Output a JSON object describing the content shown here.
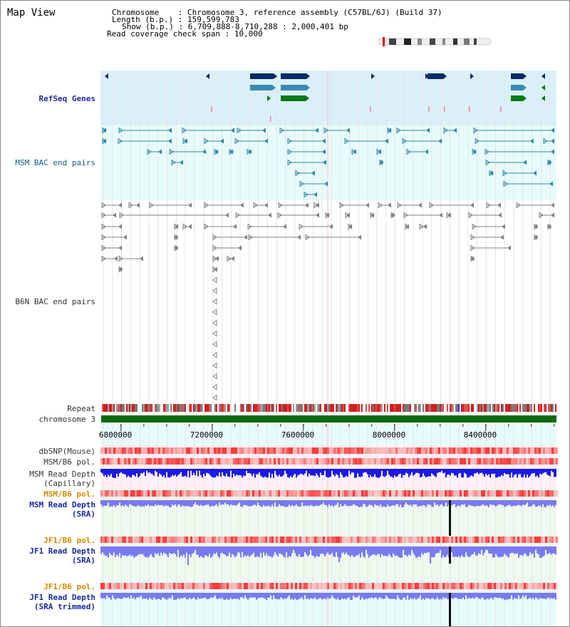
{
  "title": "Map View",
  "info": {
    "chromosome_label": "Chromosome",
    "chromosome_value": "Chromosome 3, reference assembly (C57BL/6J) (Build 37)",
    "length_label": "Length (b.p.)",
    "length_value": "159,599,783",
    "show_label": "Show (b.p.)",
    "show_value": "6,709,888-8,710,288 : 2,000,401 bp",
    "span_label": "Read coverage check span",
    "span_value": "10,000"
  },
  "tracks": {
    "refseq": "RefSeq Genes",
    "msm_bac": "MSM BAC end pairs",
    "b6n_bac": "B6N BAC end pairs",
    "repeat": "Repeat",
    "chromosome": "chromosome 3",
    "dbsnp": "dbSNP(Mouse)",
    "msm_b6_pol": "MSM/B6 pol.",
    "msm_depth_cap_1": "MSM Read Depth",
    "msm_depth_cap_2": "(Capillary)",
    "msm_b6_pol_sra": "MSM/B6 pol.",
    "msm_depth_sra_1": "MSM Read Depth",
    "msm_depth_sra_2": "(SRA)",
    "jf1_b6_pol": "JF1/B6 pol.",
    "jf1_depth_1": "JF1 Read Depth",
    "jf1_depth_2": "(SRA)",
    "jf1_b6_pol_t": "JF1/B6 pol.",
    "jf1_trim_1": "JF1 Read Depth",
    "jf1_trim_2": "(SRA trimmed)"
  },
  "axis": {
    "ticks": [
      {
        "bp": 6800000,
        "label": "6800000"
      },
      {
        "bp": 7200000,
        "label": "7200000"
      },
      {
        "bp": 7600000,
        "label": "7600000"
      },
      {
        "bp": 8000000,
        "label": "8000000"
      },
      {
        "bp": 8400000,
        "label": "8400000"
      }
    ],
    "start_bp": 6709888,
    "end_bp": 8710288
  },
  "colors": {
    "refseq_bg": "#daf0f8",
    "msm_bg": "#e8fbfb",
    "gene_navy": "#0a2a66",
    "gene_teal": "#3a8ab5",
    "gene_green": "#087a18",
    "msm_marker": "#2f87a8",
    "b6n_marker": "#808080",
    "chromosome_bar": "#0a6a10",
    "depth_blue": "#1a1ae8",
    "depth_light": "#7a7af0",
    "pol_red": "#f03030"
  }
}
